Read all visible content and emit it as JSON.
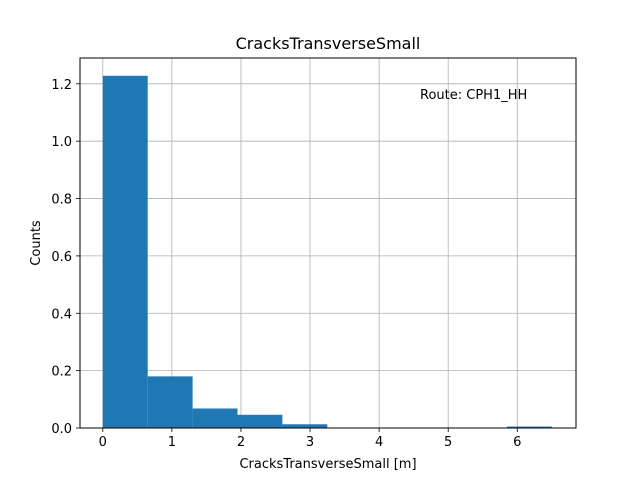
{
  "chart_data": {
    "type": "bar",
    "title": "CracksTransverseSmall",
    "xlabel": "CracksTransverseSmall [m]",
    "ylabel": "Counts",
    "annotation": "Route: CPH1_HH",
    "xlim": [
      -0.33,
      6.85
    ],
    "ylim": [
      0,
      1.29
    ],
    "grid": true,
    "bar_color": "#1f77b4",
    "x_ticks": [
      0,
      1,
      2,
      3,
      4,
      5,
      6
    ],
    "x_tick_labels": [
      "0",
      "1",
      "2",
      "3",
      "4",
      "5",
      "6"
    ],
    "y_ticks": [
      0.0,
      0.2,
      0.4,
      0.6,
      0.8,
      1.0,
      1.2
    ],
    "y_tick_labels": [
      "0.0",
      "0.2",
      "0.4",
      "0.6",
      "0.8",
      "1.0",
      "1.2"
    ],
    "bins": [
      {
        "x0": 0.0,
        "x1": 0.65,
        "value": 1.228
      },
      {
        "x0": 0.65,
        "x1": 1.3,
        "value": 0.18
      },
      {
        "x0": 1.3,
        "x1": 1.95,
        "value": 0.068
      },
      {
        "x0": 1.95,
        "x1": 2.6,
        "value": 0.046
      },
      {
        "x0": 2.6,
        "x1": 3.25,
        "value": 0.013
      },
      {
        "x0": 3.25,
        "x1": 3.9,
        "value": 0.0
      },
      {
        "x0": 3.9,
        "x1": 4.55,
        "value": 0.0
      },
      {
        "x0": 4.55,
        "x1": 5.2,
        "value": 0.0
      },
      {
        "x0": 5.2,
        "x1": 5.85,
        "value": 0.0
      },
      {
        "x0": 5.85,
        "x1": 6.5,
        "value": 0.005
      }
    ]
  }
}
